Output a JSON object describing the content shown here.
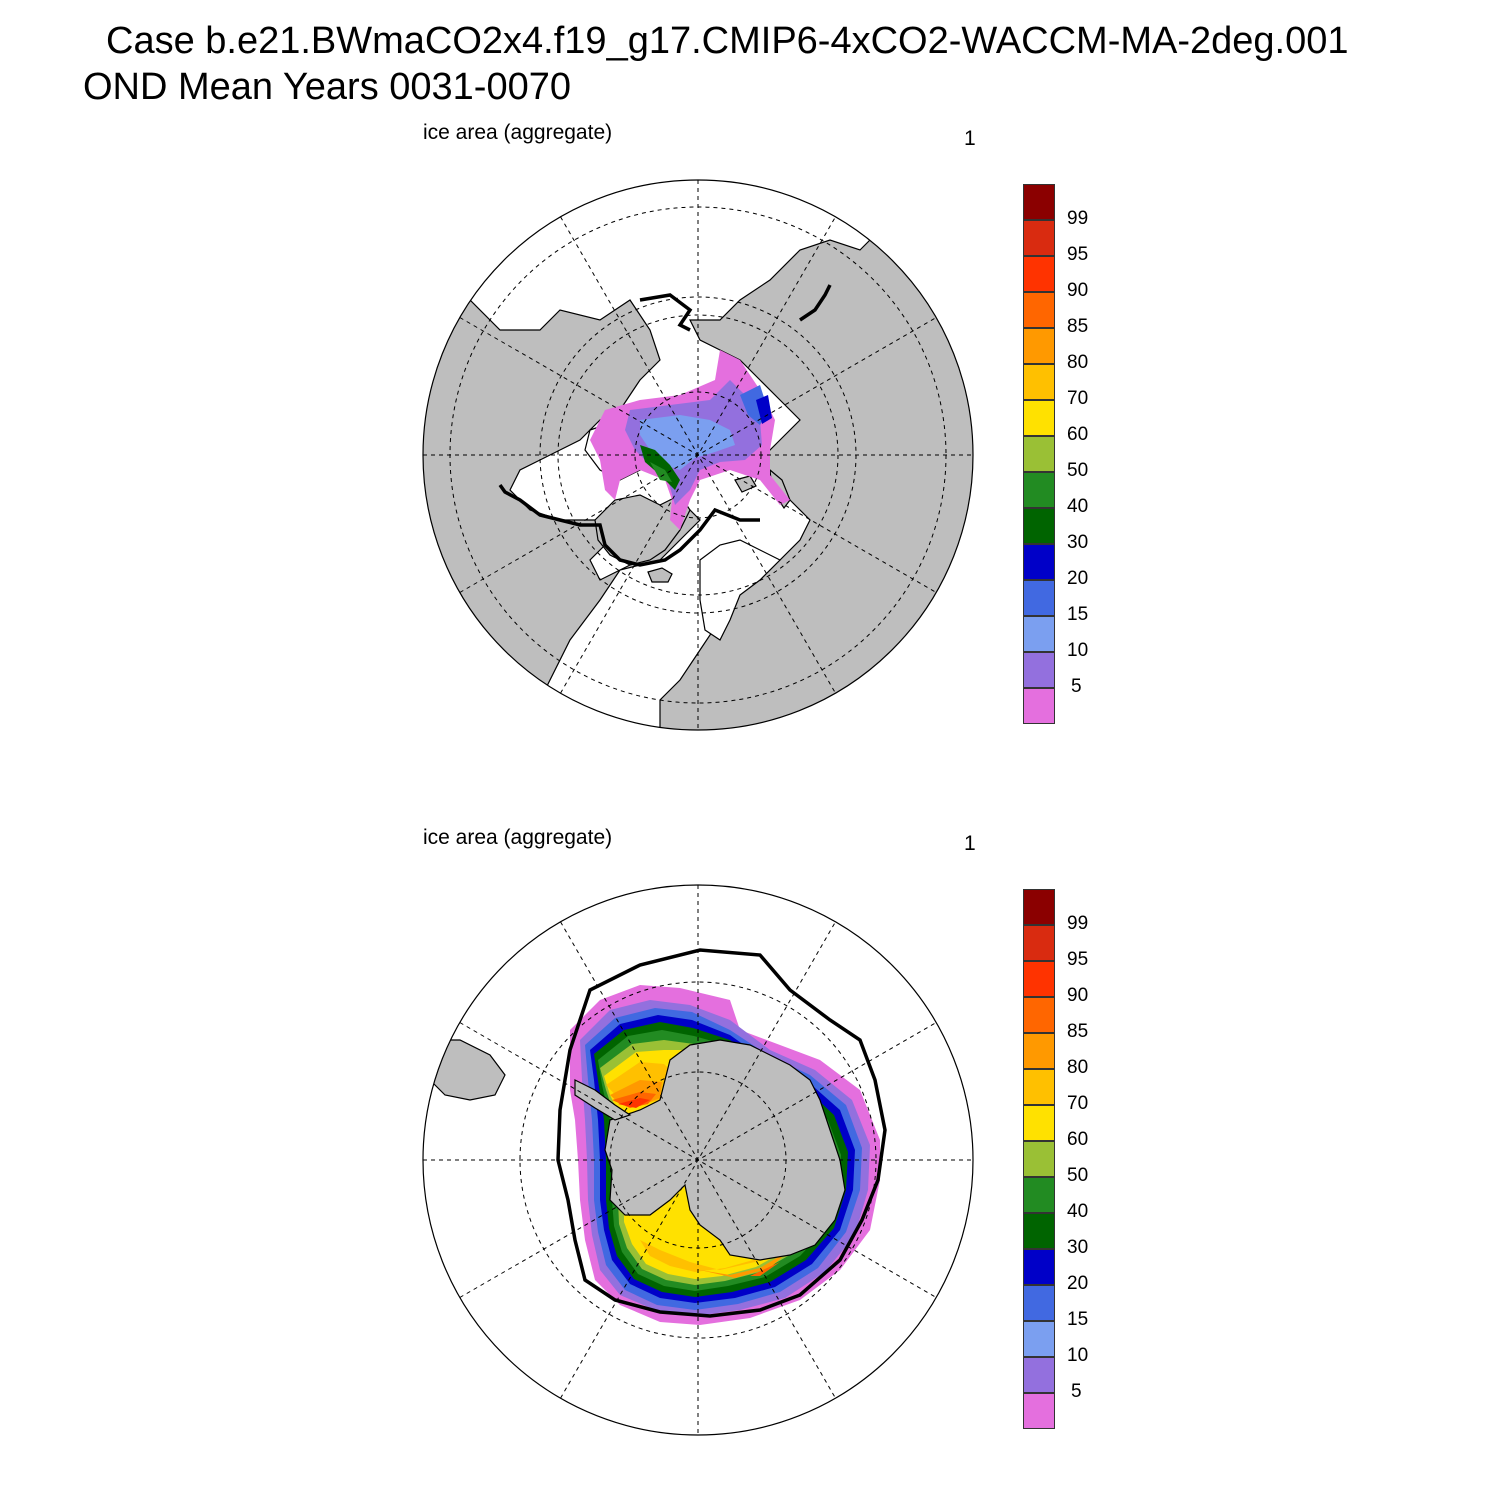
{
  "title": {
    "line1": "Case b.e21.BWmaCO2x4.f19_g17.CMIP6-4xCO2-WACCM-MA-2deg.001",
    "line2": "OND Mean   Years 0031-0070"
  },
  "panels": [
    {
      "label": "ice area  (aggregate)",
      "id": "1",
      "hemisphere": "north"
    },
    {
      "label": "ice area  (aggregate)",
      "id": "1",
      "hemisphere": "south"
    }
  ],
  "colorbar": {
    "colors": [
      "#e46fde",
      "#9370de",
      "#7b9ff0",
      "#4169e1",
      "#0000c8",
      "#006400",
      "#228b22",
      "#9ac035",
      "#ffe100",
      "#ffc000",
      "#ff9900",
      "#ff6600",
      "#ff3300",
      "#d92b10",
      "#8b0000"
    ],
    "labels": [
      "5",
      "10",
      "15",
      "20",
      "30",
      "40",
      "50",
      "60",
      "70",
      "80",
      "85",
      "90",
      "95",
      "99"
    ]
  },
  "colors": {
    "land": "#bebebe",
    "ocean": "#ffffff",
    "ice_edge": "#000000"
  }
}
